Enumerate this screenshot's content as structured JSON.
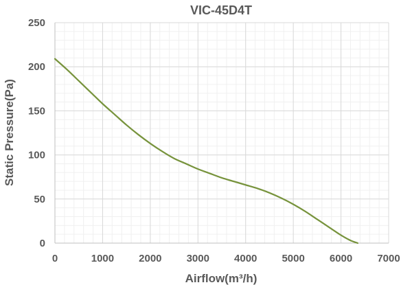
{
  "chart_data": {
    "type": "line",
    "title": "VIC-45D4T",
    "xlabel": "Airflow(m³/h)",
    "ylabel": "Static Pressure(Pa)",
    "xlim": [
      0,
      7000
    ],
    "ylim": [
      0,
      250
    ],
    "x_ticks": [
      "0",
      "1000",
      "2000",
      "3000",
      "4000",
      "5000",
      "6000",
      "7000"
    ],
    "y_ticks": [
      "0",
      "50",
      "100",
      "150",
      "200",
      "250"
    ],
    "grid": true,
    "legend": "none",
    "series": [
      {
        "color": "#77933C",
        "x": [
          0,
          250,
          500,
          750,
          1000,
          1250,
          1500,
          1750,
          2000,
          2250,
          2500,
          2750,
          3000,
          3250,
          3500,
          3750,
          4000,
          4250,
          4500,
          4750,
          5000,
          5250,
          5500,
          5750,
          6000,
          6200,
          6350
        ],
        "y": [
          209,
          197,
          184,
          171,
          158,
          146,
          134,
          123,
          113,
          104,
          96,
          90,
          84,
          79,
          74,
          70,
          66,
          62,
          57,
          51,
          44,
          36,
          27,
          18,
          9,
          3,
          0
        ]
      }
    ]
  }
}
